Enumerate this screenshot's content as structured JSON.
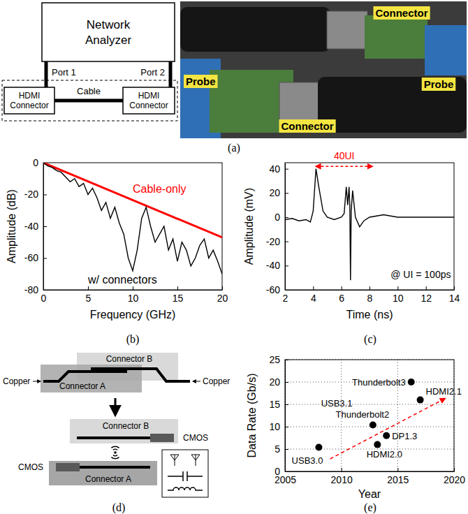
{
  "chart_data": [
    {
      "type": "line",
      "panel_label": "(b)",
      "x_label": "Frequency (GHz)",
      "y_label": "Amplitude (dB)",
      "xlim": [
        0,
        20
      ],
      "ylim": [
        -80,
        0
      ],
      "xticks": [
        0,
        5,
        10,
        15,
        20
      ],
      "yticks": [
        -80,
        -60,
        -40,
        -20,
        0
      ],
      "grid": false,
      "series": [
        {
          "name": "Cable-only",
          "color": "#ff0000",
          "x": [
            0,
            20
          ],
          "values": [
            0,
            -47
          ]
        },
        {
          "name": "w/ connectors",
          "color": "#000000",
          "x": [
            0,
            0.5,
            1,
            1.5,
            2,
            2.5,
            3,
            3.5,
            4,
            4.5,
            5,
            5.5,
            6,
            6.5,
            7,
            7.5,
            8,
            8.5,
            9,
            9.5,
            10,
            10.5,
            11,
            11.5,
            12,
            12.5,
            13,
            13.5,
            14,
            14.5,
            15,
            15.5,
            16,
            16.5,
            17,
            17.5,
            18,
            18.5,
            19,
            19.5,
            20
          ],
          "values": [
            0,
            -2,
            -3,
            -5,
            -6,
            -9,
            -12,
            -10,
            -15,
            -13,
            -20,
            -16,
            -22,
            -30,
            -25,
            -35,
            -28,
            -38,
            -45,
            -60,
            -68,
            -55,
            -35,
            -28,
            -40,
            -50,
            -45,
            -40,
            -55,
            -48,
            -62,
            -50,
            -55,
            -65,
            -60,
            -52,
            -48,
            -60,
            -55,
            -62,
            -70
          ]
        }
      ]
    },
    {
      "type": "line",
      "panel_label": "(c)",
      "x_label": "Time (ns)",
      "y_label": "Amplitude (mV)",
      "xlim": [
        2,
        14
      ],
      "ylim": [
        -60,
        45
      ],
      "xticks": [
        2,
        4,
        6,
        8,
        10,
        12,
        14
      ],
      "yticks": [
        -60,
        -40,
        -20,
        0,
        20,
        40
      ],
      "grid": false,
      "color": "#000000",
      "x": [
        2,
        2.5,
        3,
        3.5,
        3.8,
        4,
        4.2,
        4.4,
        4.7,
        5,
        5.5,
        6,
        6.2,
        6.35,
        6.45,
        6.55,
        6.6,
        6.65,
        6.7,
        6.8,
        7,
        7.3,
        7.6,
        8,
        9,
        10,
        11,
        12,
        13,
        14
      ],
      "values": [
        -2,
        -1,
        -3,
        -2,
        -4,
        5,
        40,
        25,
        5,
        0,
        -2,
        0,
        3,
        25,
        10,
        25,
        10,
        -52,
        5,
        22,
        0,
        -8,
        -3,
        0,
        2,
        0,
        0,
        0,
        0,
        0
      ],
      "annotations": [
        {
          "text": "40UI",
          "x": [
            4.2,
            8.2
          ],
          "y": 42,
          "color": "#ff0000",
          "line_style": "dashed"
        },
        {
          "text": "@ UI = 100ps",
          "x": 9.5,
          "y": -50
        }
      ]
    },
    {
      "type": "scatter",
      "panel_label": "(e)",
      "x_label": "Year",
      "y_label": "Data Rate (Gb/s)",
      "xlim": [
        2005,
        2020
      ],
      "ylim": [
        0,
        25
      ],
      "xticks": [
        2005,
        2010,
        2015,
        2020
      ],
      "yticks": [
        0,
        5,
        10,
        15,
        20,
        25
      ],
      "grid": true,
      "marker": "circle",
      "color": "#000000",
      "point_labels": [
        "USB3.0",
        "Thunderbolt2",
        "HDMI2.0",
        "DP1.3",
        "Thunderbolt3",
        "HDMI2.1"
      ],
      "x": [
        2008,
        2012.8,
        2013.2,
        2014,
        2016.2,
        2017
      ],
      "values": [
        5.4,
        10.4,
        6,
        8,
        20,
        16
      ],
      "annotations": [
        {
          "text": "USB3.1",
          "x": 2008.2,
          "y": 14.5
        }
      ],
      "trend_line": {
        "x": [
          2009,
          2019.2
        ],
        "y": [
          2.8,
          16.3
        ],
        "color": "#ff0000",
        "line_style": "dashed"
      }
    }
  ],
  "diagrams": {
    "a": {
      "analyzer": "Network Analyzer",
      "ports": [
        "Port 1",
        "Port 2"
      ],
      "connectors": [
        "HDMI Connector",
        "HDMI Connector"
      ],
      "cable": "Cable",
      "photo_labels": [
        "Connector",
        "Probe",
        "Probe",
        "Connector"
      ],
      "panel_label": "(a)"
    },
    "d": {
      "top_labels": {
        "connector_a": "Connector A",
        "connector_b": "Connector B",
        "copper": [
          "Copper",
          "Copper"
        ]
      },
      "bottom_labels": {
        "connector_a": "Connector A",
        "connector_b": "Connector B",
        "cmos": [
          "CMOS",
          "CMOS"
        ]
      },
      "panel_label": "(d)"
    }
  }
}
